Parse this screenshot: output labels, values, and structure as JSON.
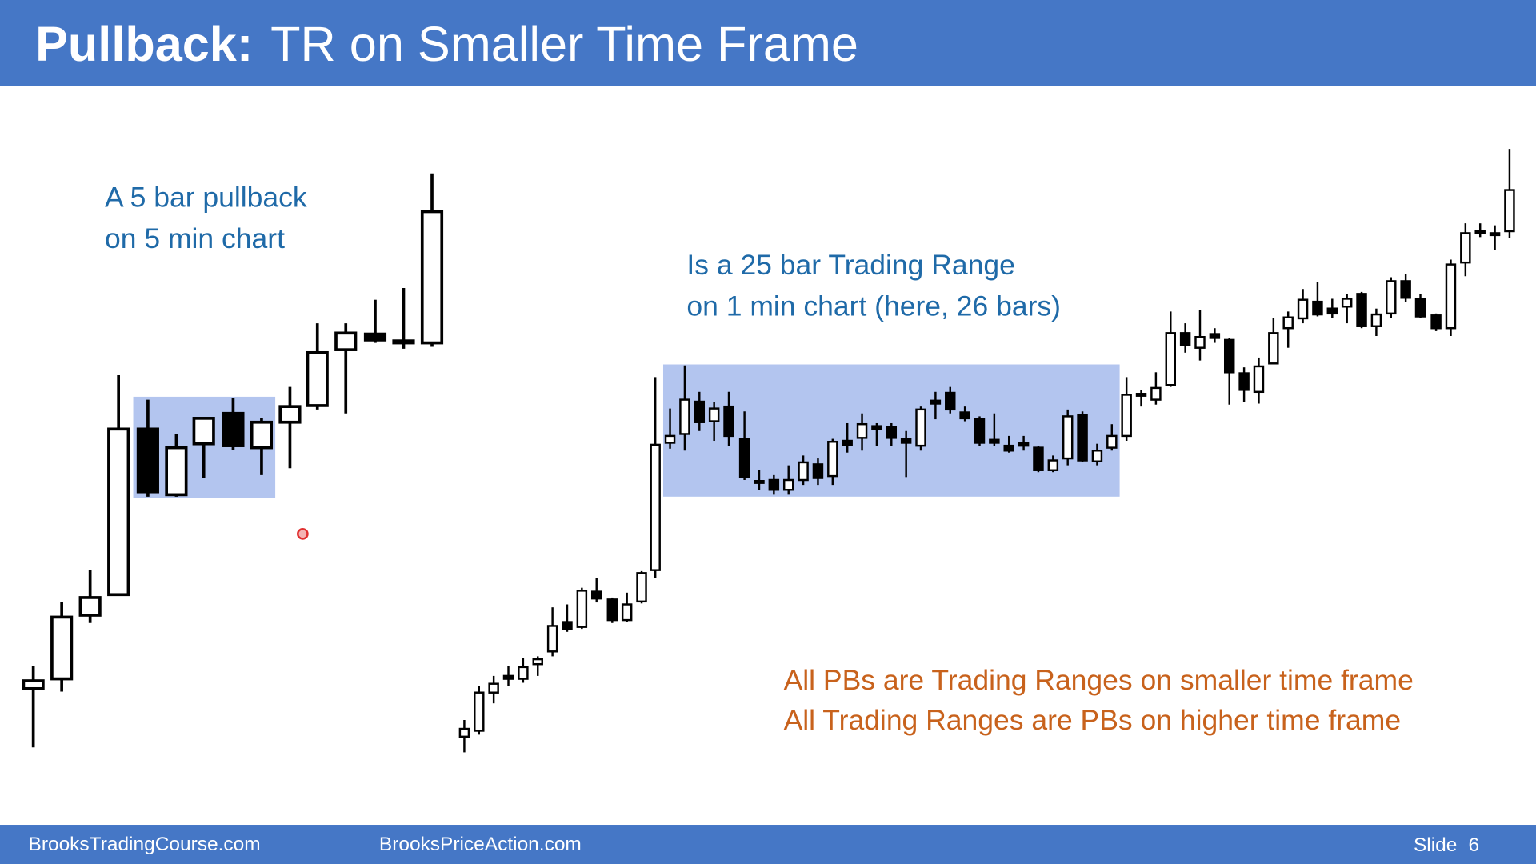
{
  "header": {
    "title_bold": "Pullback:",
    "title_rest": "TR on Smaller Time Frame"
  },
  "annotations": {
    "left": [
      "A 5 bar pullback",
      "on 5 min chart"
    ],
    "middle": [
      "Is a 25 bar Trading Range",
      "on 1 min chart (here, 26 bars)"
    ],
    "conclusion": [
      "All PBs are Trading Ranges on smaller time frame",
      "All Trading Ranges are PBs on higher time frame"
    ]
  },
  "footer": {
    "site1": "BrooksTradingCourse.com",
    "site2": "BrooksPriceAction.com",
    "slide_label": "Slide",
    "slide_number": "6"
  }
}
